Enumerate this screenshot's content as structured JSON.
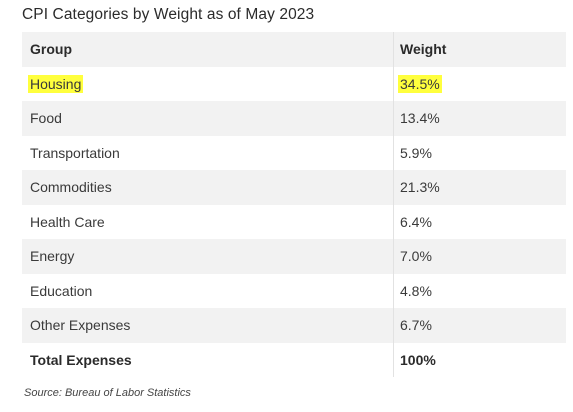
{
  "chart_data": {
    "type": "table",
    "title": "CPI Categories by Weight as of May 2023",
    "columns": [
      "Group",
      "Weight"
    ],
    "rows": [
      {
        "group": "Housing",
        "weight": "34.5%",
        "highlighted": true
      },
      {
        "group": "Food",
        "weight": "13.4%",
        "highlighted": false
      },
      {
        "group": "Transportation",
        "weight": "5.9%",
        "highlighted": false
      },
      {
        "group": "Commodities",
        "weight": "21.3%",
        "highlighted": false
      },
      {
        "group": "Health Care",
        "weight": "6.4%",
        "highlighted": false
      },
      {
        "group": "Energy",
        "weight": "7.0%",
        "highlighted": false
      },
      {
        "group": "Education",
        "weight": "4.8%",
        "highlighted": false
      },
      {
        "group": "Other Expenses",
        "weight": "6.7%",
        "highlighted": false
      }
    ],
    "total": {
      "group": "Total Expenses",
      "weight": "100%"
    },
    "source": "Source: Bureau of Labor Statistics"
  },
  "colors": {
    "highlight": "#ffff3d",
    "shaded_row": "#f2f2f2"
  }
}
